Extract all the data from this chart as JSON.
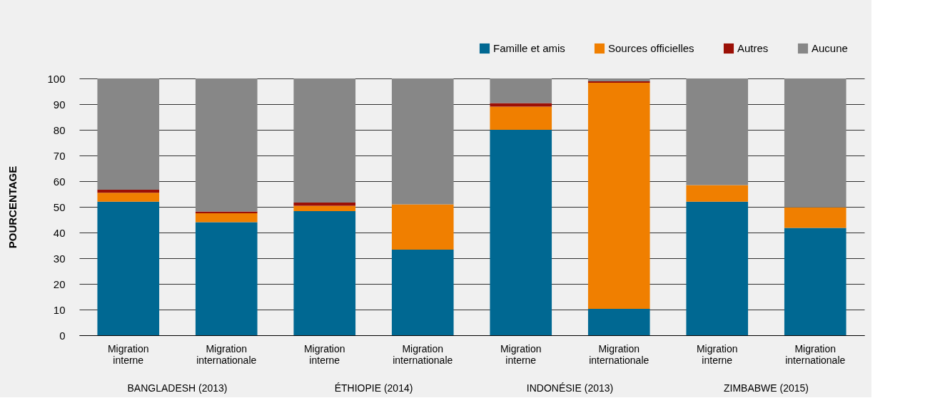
{
  "chart_data": {
    "type": "bar",
    "stacked": true,
    "ylabel": "POURCENTAGE",
    "categories": [
      "Migration interne",
      "Migration internationale",
      "Migration interne",
      "Migration internationale",
      "Migration interne",
      "Migration internationale",
      "Migration interne",
      "Migration internationale"
    ],
    "series": [
      {
        "name": "Famille et amis",
        "color": "#006892",
        "values": [
          52,
          44,
          48.3,
          33.3,
          80,
          10.3,
          52,
          41.8
        ]
      },
      {
        "name": "Sources officielles",
        "color": "#f07f00",
        "values": [
          3.5,
          3.5,
          2.1,
          17.7,
          9,
          88,
          6.5,
          8
        ]
      },
      {
        "name": "Autres",
        "color": "#9b1006",
        "values": [
          1.2,
          0.7,
          1.3,
          null,
          1.4,
          0.6,
          0,
          0
        ]
      },
      {
        "name": "Aucune",
        "color": "#878787",
        "values": [
          43.3,
          51.8,
          48.3,
          49,
          9.6,
          1.1,
          41.5,
          50.2
        ]
      }
    ],
    "annotations": [
      "BANGLADESH (2013)",
      "ÉTHIOPIE (2014)",
      "INDONÉSIE (2013)",
      "ZIMBABWE (2015)"
    ],
    "ylim": [
      0,
      100
    ],
    "yticks": [
      0,
      10,
      20,
      30,
      40,
      50,
      60,
      70,
      80,
      90,
      100
    ],
    "grid": "y",
    "legend": "top right"
  }
}
